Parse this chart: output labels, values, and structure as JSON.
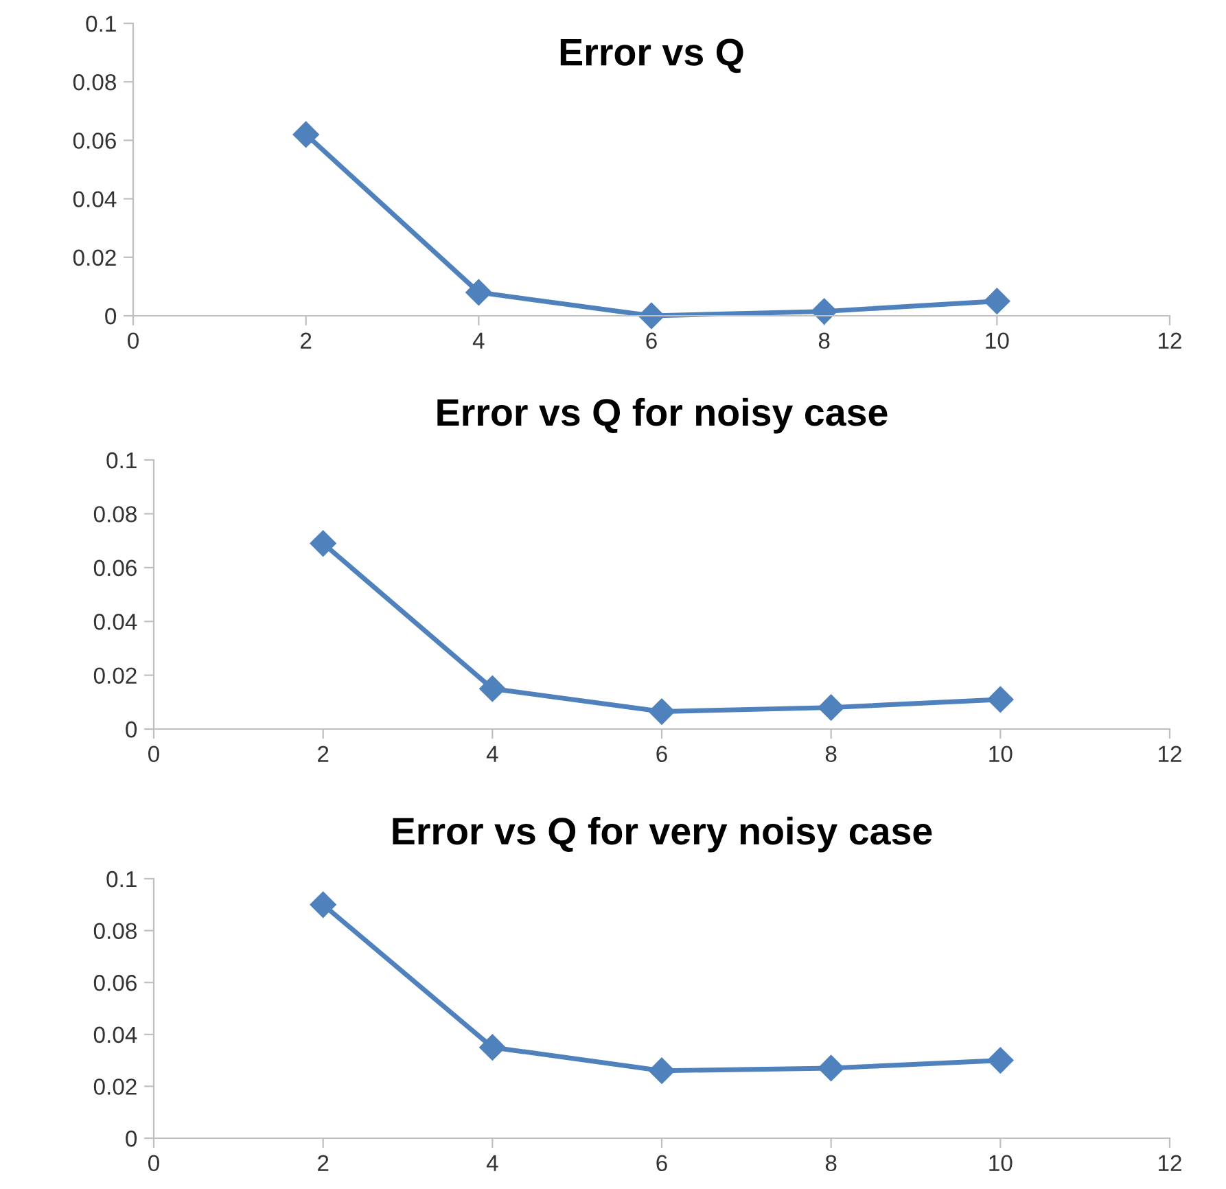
{
  "chart_data": [
    {
      "type": "line",
      "title": "Error vs Q",
      "x": [
        2,
        4,
        6,
        8,
        10
      ],
      "series": [
        {
          "color": "#4f81bd",
          "values": [
            0.062,
            0.008,
            0.0,
            0.0015,
            0.005
          ]
        }
      ],
      "xlim": [
        0,
        12
      ],
      "xticks": [
        0,
        2,
        4,
        6,
        8,
        10,
        12
      ],
      "ylim": [
        0,
        0.1
      ],
      "yticks": [
        0,
        0.02,
        0.04,
        0.06,
        0.08,
        0.1
      ],
      "grid": false,
      "marker": "diamond",
      "line_style": "solid"
    },
    {
      "type": "line",
      "title": "Error vs Q for noisy case",
      "x": [
        2,
        4,
        6,
        8,
        10
      ],
      "series": [
        {
          "color": "#4f81bd",
          "values": [
            0.069,
            0.015,
            0.0065,
            0.008,
            0.011
          ]
        }
      ],
      "xlim": [
        0,
        12
      ],
      "xticks": [
        0,
        2,
        4,
        6,
        8,
        10,
        12
      ],
      "ylim": [
        0,
        0.1
      ],
      "yticks": [
        0,
        0.02,
        0.04,
        0.06,
        0.08,
        0.1
      ],
      "grid": false,
      "marker": "diamond",
      "line_style": "solid"
    },
    {
      "type": "line",
      "title": "Error vs Q for very noisy case",
      "x": [
        2,
        4,
        6,
        8,
        10
      ],
      "series": [
        {
          "color": "#4f81bd",
          "values": [
            0.09,
            0.035,
            0.026,
            0.027,
            0.03
          ]
        }
      ],
      "xlim": [
        0,
        12
      ],
      "xticks": [
        0,
        2,
        4,
        6,
        8,
        10,
        12
      ],
      "ylim": [
        0,
        0.1
      ],
      "yticks": [
        0,
        0.02,
        0.04,
        0.06,
        0.08,
        0.1
      ],
      "grid": false,
      "marker": "diamond",
      "line_style": "solid"
    }
  ]
}
